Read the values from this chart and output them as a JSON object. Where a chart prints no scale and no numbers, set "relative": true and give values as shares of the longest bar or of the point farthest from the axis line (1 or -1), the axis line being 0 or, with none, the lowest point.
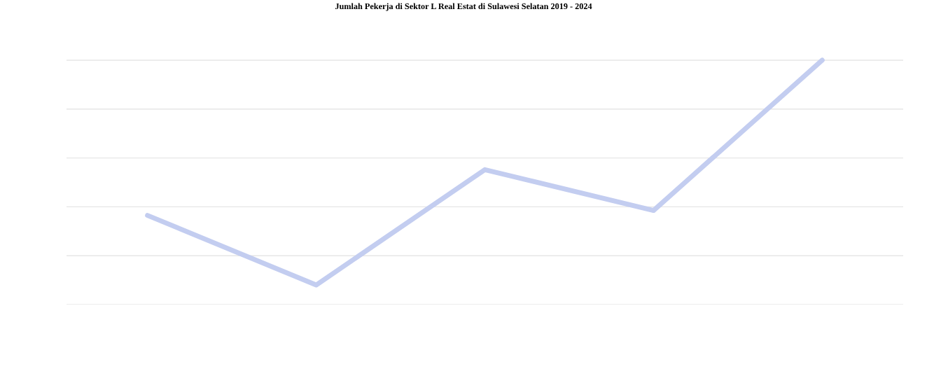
{
  "chart_data": {
    "type": "line",
    "title": "Jumlah Pekerja di Sektor L Real Estat di Sulawesi Selatan 2019 - 2024",
    "categories": [
      null,
      null,
      null,
      null,
      null
    ],
    "values": [
      0.365,
      0.08,
      0.552,
      0.385,
      1.0
    ],
    "color": "#c3cdf0",
    "relative": true,
    "grid": "y",
    "legend": false,
    "marker": "none",
    "line_style": "solid"
  }
}
